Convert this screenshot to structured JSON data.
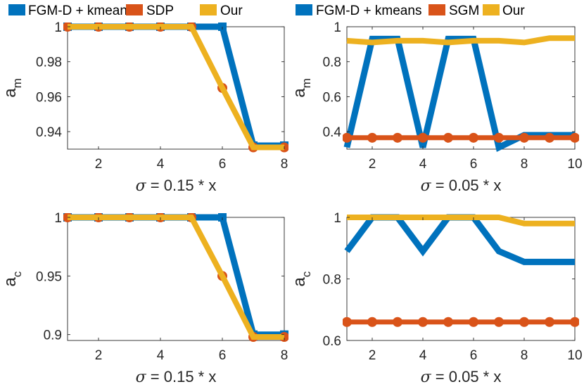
{
  "chart_data": [
    {
      "type": "line",
      "ylabel_main": "a",
      "ylabel_sub": "m",
      "xlabel_sym": "σ",
      "xlabel_rest": " = 0.15 * x",
      "xlim": [
        1,
        8
      ],
      "ylim": [
        0.93,
        1.0
      ],
      "xticks": [
        2,
        4,
        6,
        8
      ],
      "xtick_labels": [
        "2",
        "4",
        "6",
        "8"
      ],
      "yticks": [
        0.94,
        0.96,
        0.98,
        1.0
      ],
      "ytick_labels": [
        "0.94",
        "0.96",
        "0.98",
        "1"
      ],
      "x": [
        1,
        2,
        3,
        4,
        5,
        6,
        7,
        8
      ],
      "series": [
        {
          "name": "FGM-D + kmeans",
          "color": "#0072BD",
          "marker": "square",
          "values": [
            1,
            1,
            1,
            1,
            1,
            1,
            0.932,
            0.932
          ]
        },
        {
          "name": "SDP",
          "color": "#D95319",
          "marker": "circle",
          "values": [
            1,
            1,
            1,
            1,
            1,
            0.965,
            0.931,
            0.931
          ]
        },
        {
          "name": "Our",
          "color": "#EDB120",
          "marker": "none",
          "values": [
            1,
            1,
            1,
            1,
            1,
            0.965,
            0.931,
            0.931
          ]
        }
      ]
    },
    {
      "type": "line",
      "ylabel_main": "a",
      "ylabel_sub": "m",
      "xlabel_sym": "σ",
      "xlabel_rest": " = 0.05 * x",
      "xlim": [
        1,
        10
      ],
      "ylim": [
        0.3,
        1.0
      ],
      "xticks": [
        2,
        4,
        6,
        8,
        10
      ],
      "xtick_labels": [
        "2",
        "4",
        "6",
        "8",
        "10"
      ],
      "yticks": [
        0.4,
        0.6,
        0.8,
        1.0
      ],
      "ytick_labels": [
        "0.4",
        "0.6",
        "0.8",
        "1"
      ],
      "x": [
        1,
        2,
        3,
        4,
        5,
        6,
        7,
        8,
        9,
        10
      ],
      "series": [
        {
          "name": "FGM-D + kmeans",
          "color": "#0072BD",
          "marker": "none",
          "values": [
            0.31,
            0.93,
            0.93,
            0.31,
            0.93,
            0.93,
            0.31,
            0.38,
            0.38,
            0.38
          ]
        },
        {
          "name": "SGM",
          "color": "#D95319",
          "marker": "circle",
          "values": [
            0.365,
            0.365,
            0.365,
            0.365,
            0.365,
            0.365,
            0.365,
            0.365,
            0.365,
            0.365
          ]
        },
        {
          "name": "Our",
          "color": "#EDB120",
          "marker": "none",
          "values": [
            0.92,
            0.91,
            0.92,
            0.92,
            0.91,
            0.92,
            0.92,
            0.91,
            0.935,
            0.935
          ]
        }
      ]
    },
    {
      "type": "line",
      "ylabel_main": "a",
      "ylabel_sub": "c",
      "xlabel_sym": "σ",
      "xlabel_rest": " = 0.15 * x",
      "xlim": [
        1,
        8
      ],
      "ylim": [
        0.895,
        1.0
      ],
      "xticks": [
        2,
        4,
        6,
        8
      ],
      "xtick_labels": [
        "2",
        "4",
        "6",
        "8"
      ],
      "yticks": [
        0.9,
        0.95,
        1.0
      ],
      "ytick_labels": [
        "0.9",
        "0.95",
        "1"
      ],
      "x": [
        1,
        2,
        3,
        4,
        5,
        6,
        7,
        8
      ],
      "series": [
        {
          "name": "FGM-D + kmeans",
          "color": "#0072BD",
          "marker": "square",
          "values": [
            1,
            1,
            1,
            1,
            1,
            1,
            0.9,
            0.9
          ]
        },
        {
          "name": "SDP",
          "color": "#D95319",
          "marker": "circle",
          "values": [
            1,
            1,
            1,
            1,
            1,
            0.95,
            0.898,
            0.898
          ]
        },
        {
          "name": "Our",
          "color": "#EDB120",
          "marker": "none",
          "values": [
            1,
            1,
            1,
            1,
            1,
            0.95,
            0.898,
            0.898
          ]
        }
      ]
    },
    {
      "type": "line",
      "ylabel_main": "a",
      "ylabel_sub": "c",
      "xlabel_sym": "σ",
      "xlabel_rest": " = 0.05 * x",
      "xlim": [
        1,
        10
      ],
      "ylim": [
        0.6,
        1.0
      ],
      "xticks": [
        2,
        4,
        6,
        8,
        10
      ],
      "xtick_labels": [
        "2",
        "4",
        "6",
        "8",
        "10"
      ],
      "yticks": [
        0.6,
        0.8,
        1.0
      ],
      "ytick_labels": [
        "0.6",
        "0.8",
        "1"
      ],
      "x": [
        1,
        2,
        3,
        4,
        5,
        6,
        7,
        8,
        9,
        10
      ],
      "series": [
        {
          "name": "FGM-D + kmeans",
          "color": "#0072BD",
          "marker": "none",
          "values": [
            0.89,
            1,
            1,
            0.89,
            1,
            1,
            0.89,
            0.855,
            0.855,
            0.855
          ]
        },
        {
          "name": "SGM",
          "color": "#D95319",
          "marker": "circle",
          "values": [
            0.66,
            0.66,
            0.66,
            0.66,
            0.66,
            0.66,
            0.66,
            0.66,
            0.66,
            0.66
          ]
        },
        {
          "name": "Our",
          "color": "#EDB120",
          "marker": "none",
          "values": [
            1,
            1,
            1,
            1,
            1,
            1,
            1,
            0.98,
            0.98,
            0.98
          ]
        }
      ]
    }
  ],
  "legends": [
    {
      "position": "top-left",
      "entries": [
        {
          "label": "FGM-D + kmeans",
          "color": "#0072BD"
        },
        {
          "label": "SDP",
          "color": "#D95319"
        },
        {
          "label": "Our",
          "color": "#EDB120"
        }
      ]
    },
    {
      "position": "top-right",
      "entries": [
        {
          "label": "FGM-D + kmeans",
          "color": "#0072BD"
        },
        {
          "label": "SGM",
          "color": "#D95319"
        },
        {
          "label": "Our",
          "color": "#EDB120"
        }
      ]
    }
  ]
}
